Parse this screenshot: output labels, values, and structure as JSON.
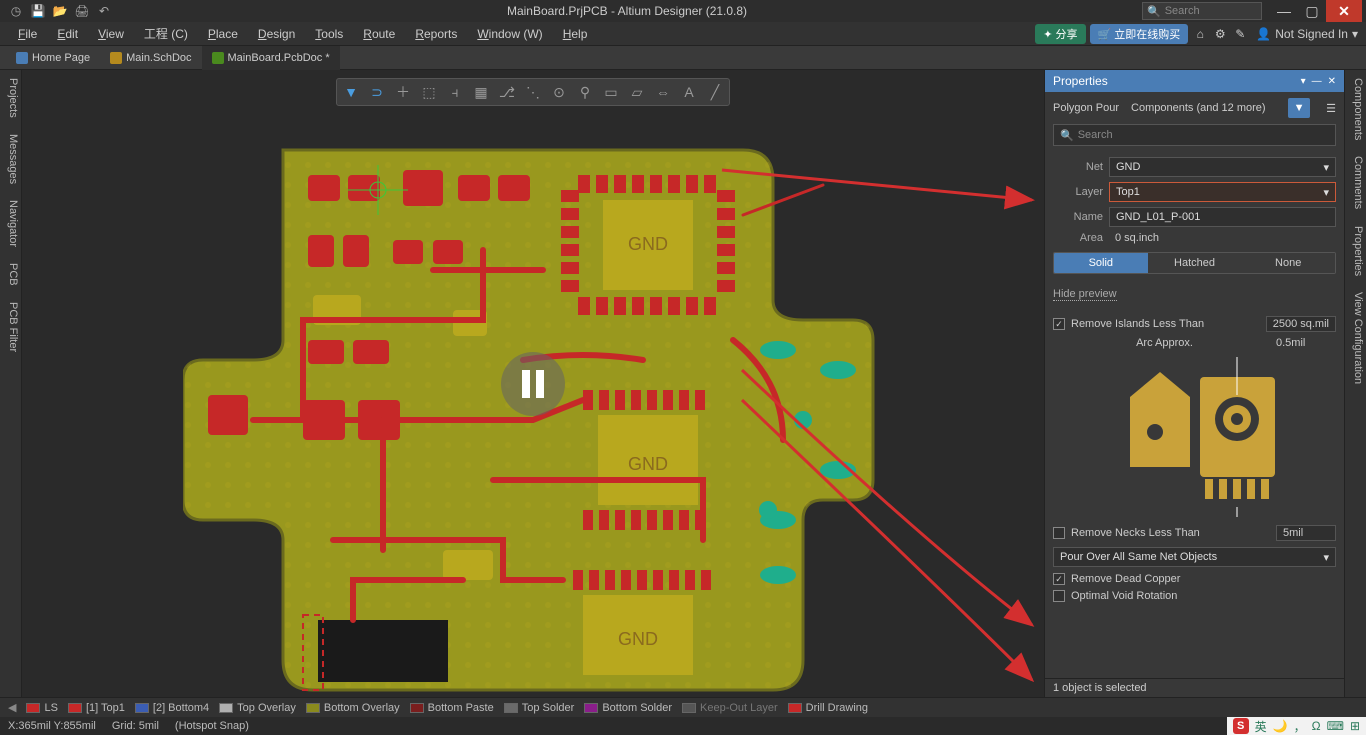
{
  "titlebar": {
    "title": "MainBoard.PrjPCB - Altium Designer (21.0.8)",
    "search_placeholder": "Search"
  },
  "menus": [
    "File",
    "Edit",
    "View",
    "工程 (C)",
    "Place",
    "Design",
    "Tools",
    "Route",
    "Reports",
    "Window (W)",
    "Help"
  ],
  "top_right": {
    "share": "分享",
    "buy": "立即在线购买",
    "signin": "Not Signed In"
  },
  "doc_tabs": [
    {
      "label": "Home Page",
      "kind": "home",
      "active": false,
      "dirty": ""
    },
    {
      "label": "Main.SchDoc",
      "kind": "sch",
      "active": false,
      "dirty": ""
    },
    {
      "label": "MainBoard.PcbDoc",
      "kind": "pcb",
      "active": true,
      "dirty": "*"
    }
  ],
  "left_rails": [
    "Projects",
    "Messages",
    "Navigator",
    "PCB",
    "PCB Filter"
  ],
  "right_rails": [
    "Components",
    "Comments",
    "Properties",
    "View Configuration"
  ],
  "properties": {
    "title": "Properties",
    "obj_type": "Polygon Pour",
    "scope": "Components (and 12 more)",
    "search_placeholder": "Search",
    "net_label": "Net",
    "net_value": "GND",
    "layer_label": "Layer",
    "layer_value": "Top1",
    "name_label": "Name",
    "name_value": "GND_L01_P-001",
    "area_label": "Area",
    "area_value": "0 sq.inch",
    "fill_modes": [
      "Solid",
      "Hatched",
      "None"
    ],
    "fill_active": 0,
    "hide_preview": "Hide preview",
    "arc_label": "Arc Approx.",
    "arc_value": "0.5mil",
    "remove_islands_label": "Remove Islands Less Than",
    "remove_islands_value": "2500 sq.mil",
    "remove_necks_label": "Remove Necks Less Than",
    "remove_necks_value": "5mil",
    "pour_rule": "Pour Over All Same Net Objects",
    "remove_dead": "Remove Dead Copper",
    "optimal_rotation": "Optimal Void Rotation",
    "status": "1 object is selected"
  },
  "layerbar": [
    {
      "label": "LS",
      "color": "#c62828",
      "dim": false
    },
    {
      "label": "[1] Top1",
      "color": "#c62828",
      "dim": false
    },
    {
      "label": "[2] Bottom4",
      "color": "#3b5db3",
      "dim": false
    },
    {
      "label": "Top Overlay",
      "color": "#b0b0b0",
      "dim": false
    },
    {
      "label": "Bottom Overlay",
      "color": "#8a8a1e",
      "dim": false
    },
    {
      "label": "Bottom Paste",
      "color": "#7a1e1e",
      "dim": false
    },
    {
      "label": "Top Solder",
      "color": "#6a6a6a",
      "dim": false
    },
    {
      "label": "Bottom Solder",
      "color": "#8a1e8a",
      "dim": false
    },
    {
      "label": "Keep-Out Layer",
      "color": "#555555",
      "dim": true
    },
    {
      "label": "Drill Drawing",
      "color": "#c62828",
      "dim": false
    }
  ],
  "statusbar": {
    "coords": "X:365mil Y:855mil",
    "grid": "Grid: 5mil",
    "snap": "(Hotspot Snap)"
  },
  "pcb_colors": {
    "board_fill": "#99981e",
    "board_edge": "#6a6a1e",
    "copper": "#c62828",
    "copper_dark": "#8a1e1e",
    "drill": "#000000",
    "via_ring": "#999999",
    "teal_pad": "#1fae8c"
  },
  "ime": {
    "label": "英",
    "omega": "Ω"
  }
}
